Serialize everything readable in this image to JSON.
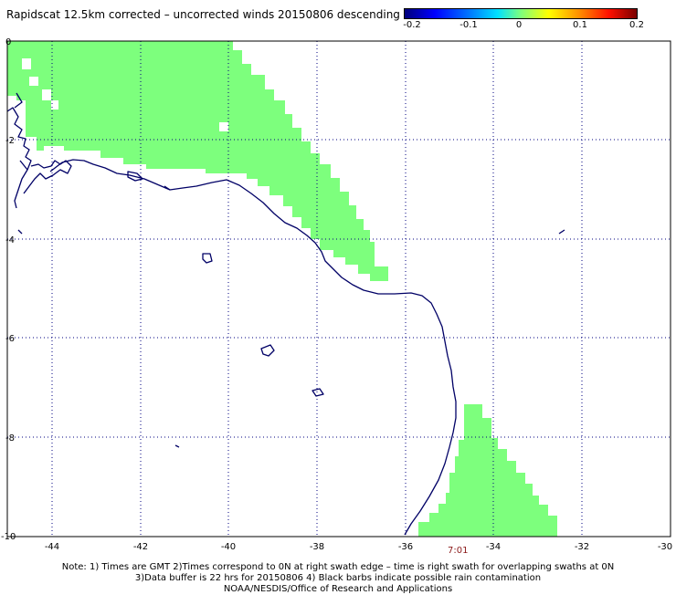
{
  "title": "Rapidscat 12.5km corrected – uncorrected winds 20150806 descending",
  "colorbar": {
    "labels": [
      "-0.2",
      "-0.1",
      "0",
      "0.1",
      "0.2"
    ],
    "values": [
      -0.2,
      -0.1,
      0,
      0.1,
      0.2
    ]
  },
  "map": {
    "lon_ticks": [
      "-44",
      "-42",
      "-40",
      "-38",
      "-36",
      "-34",
      "-32",
      "-30"
    ],
    "lat_ticks": [
      "0",
      "-2",
      "-4",
      "-6",
      "-8",
      "-10"
    ],
    "lon_range": [
      -45,
      -30
    ],
    "lat_range": [
      -10,
      0
    ],
    "swath_color": "#7dff7d",
    "coast_color": "#000066",
    "grid_color": "#000080"
  },
  "time_label": "7:01",
  "notes": [
    "Note: 1) Times are GMT 2)Times correspond to 0N at right swath edge – time is right swath for overlapping swaths at 0N",
    "3)Data buffer is 22 hrs for 20150806 4) Black barbs indicate possible rain contamination",
    "NOAA/NESDIS/Office of Research and Applications"
  ]
}
